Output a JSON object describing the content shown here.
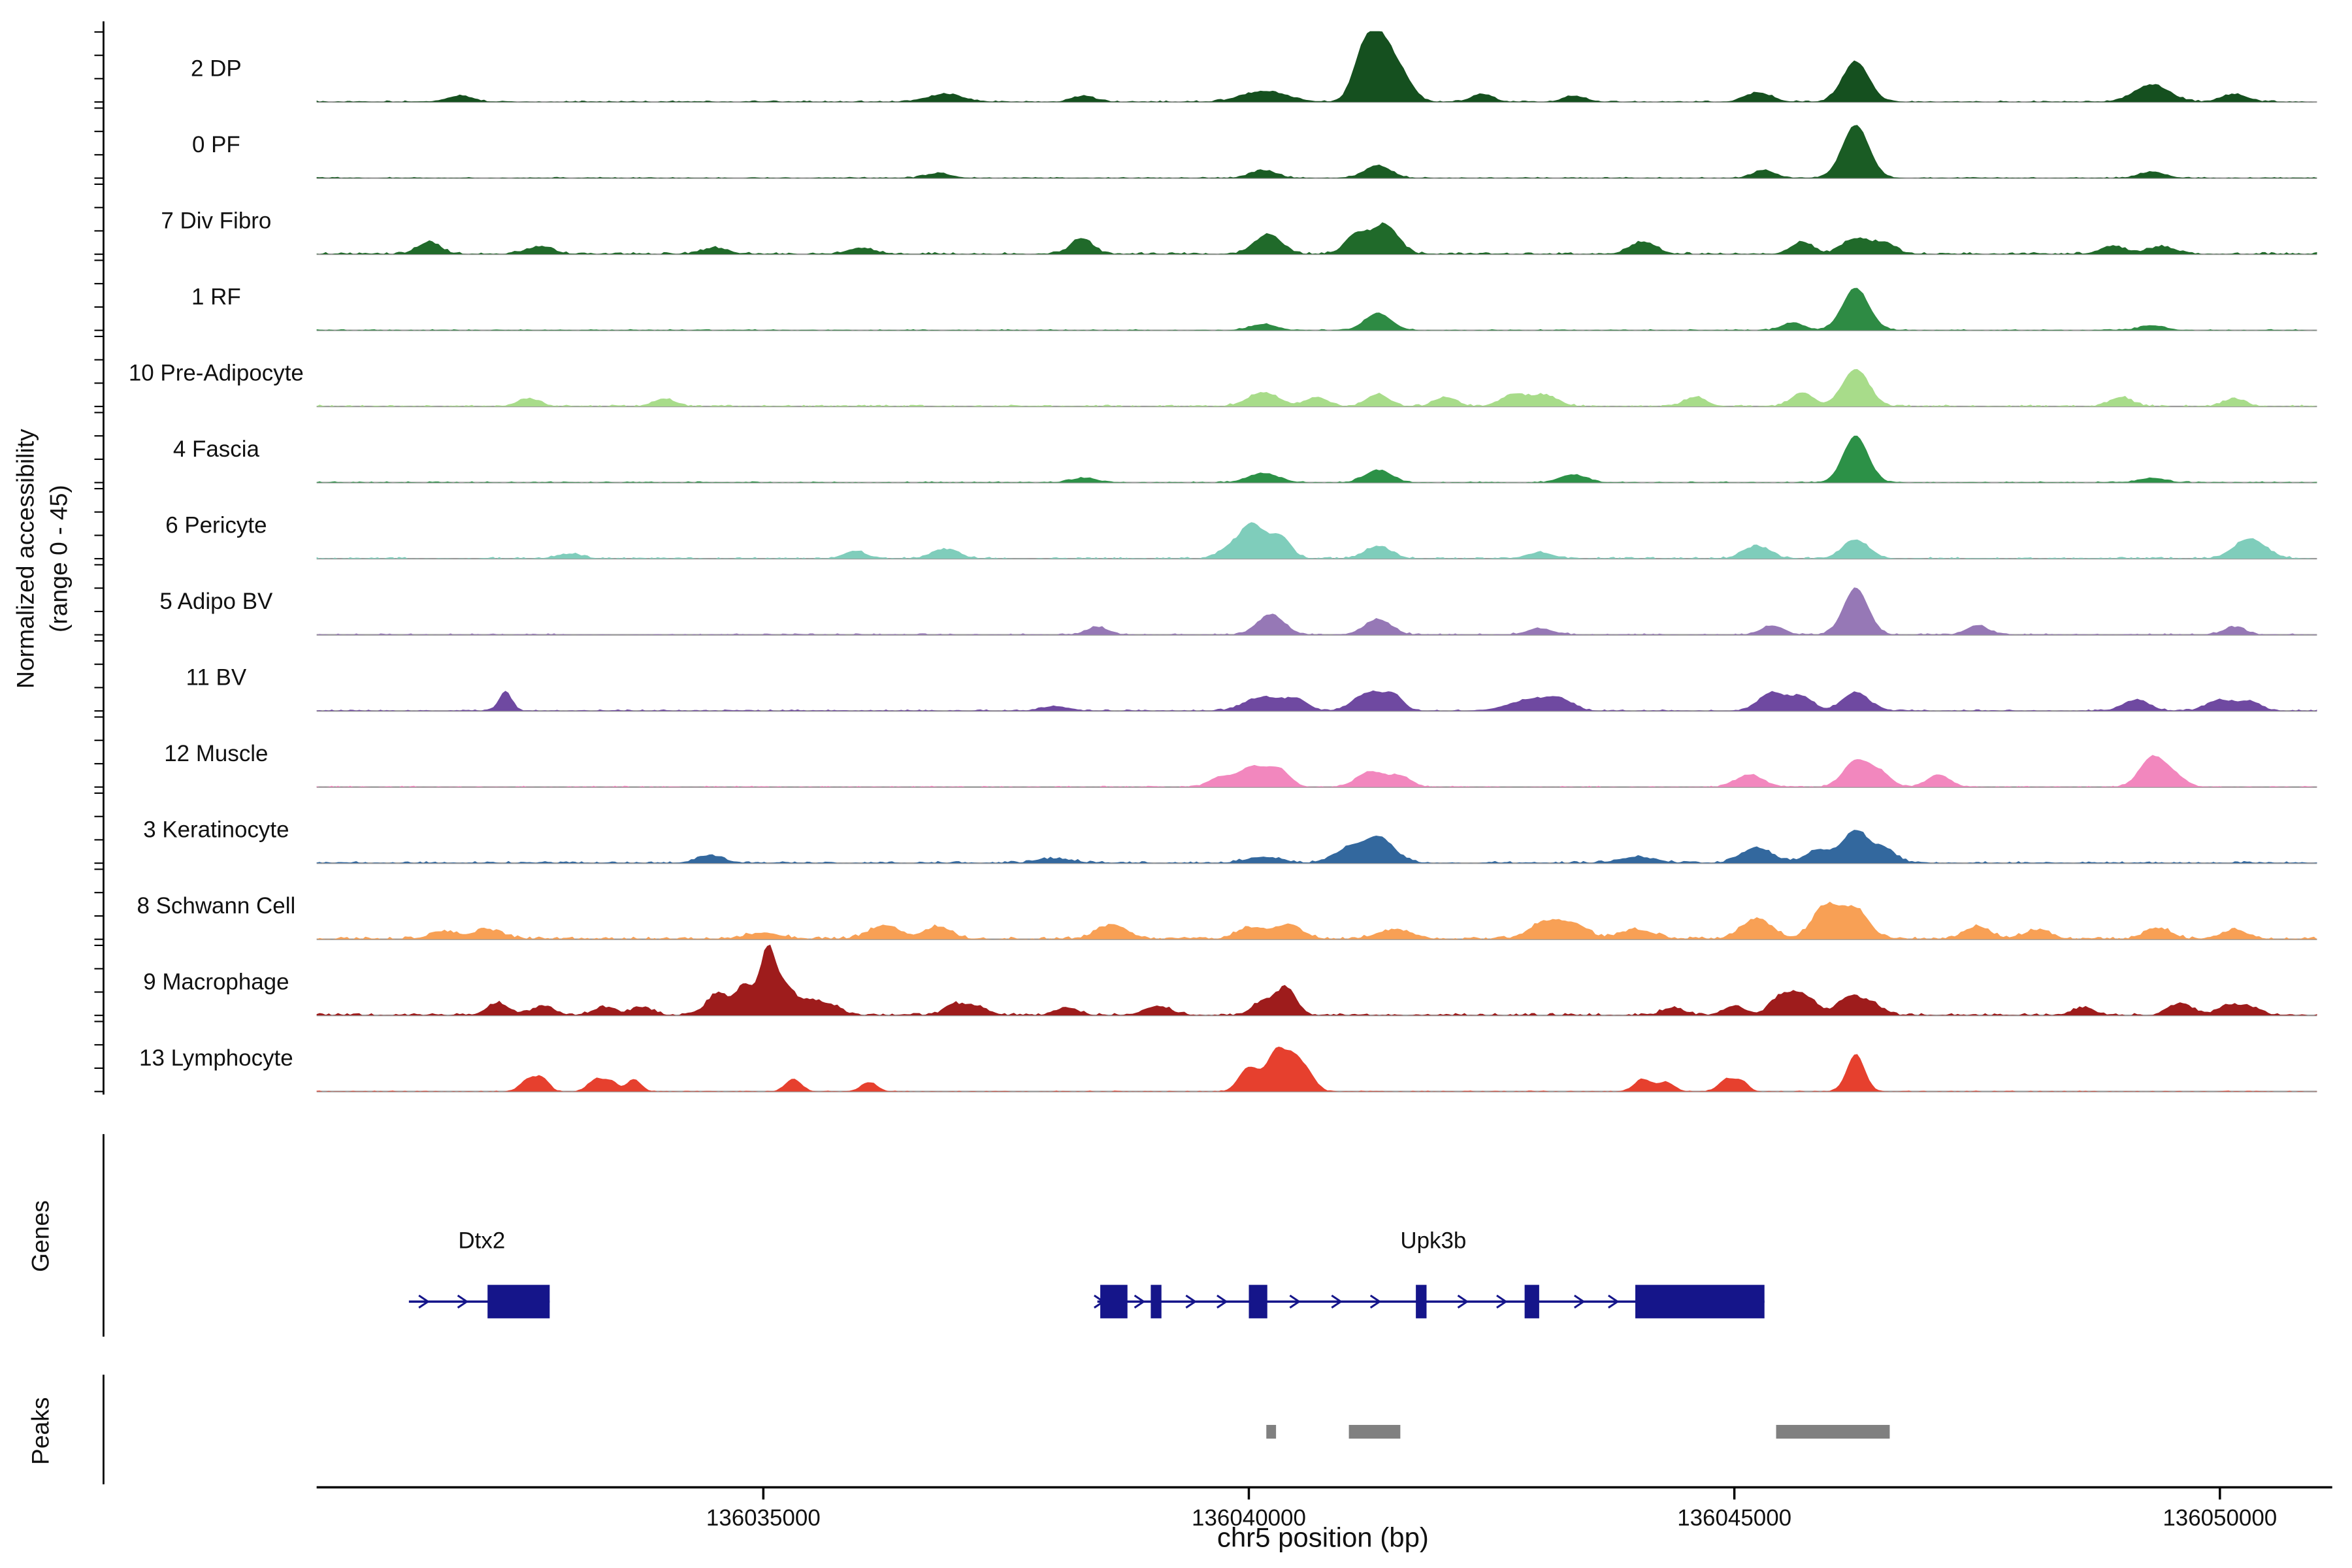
{
  "figure": {
    "ylabel_line1": "Normalized accessibility",
    "ylabel_line2": "(range 0 - 45)",
    "genes_label": "Genes",
    "peaks_label": "Peaks",
    "xlabel": "chr5 position (bp)"
  },
  "chart_data": {
    "type": "area",
    "title": "",
    "xlabel": "chr5 position (bp)",
    "ylabel": "Normalized accessibility (range 0 - 45)",
    "xlim": [
      136030400,
      136051000
    ],
    "track_value_range": [
      0,
      45
    ],
    "xticks": [
      136035000,
      136040000,
      136045000,
      136050000
    ],
    "gene_color": "#15158a",
    "peak_color": "#808080",
    "tracks": [
      {
        "id": "dp",
        "label": "2 DP",
        "color": "#15501f",
        "noise": 0.5,
        "bumps": [
          [
            136041330,
            44,
            350
          ],
          [
            136041150,
            12,
            200
          ],
          [
            136041600,
            10,
            250
          ],
          [
            136040160,
            7,
            500
          ],
          [
            136046250,
            26,
            300
          ],
          [
            136045250,
            6,
            300
          ],
          [
            136049300,
            11,
            400
          ],
          [
            136050150,
            5,
            300
          ],
          [
            136036875,
            5,
            400
          ],
          [
            136031875,
            4,
            300
          ],
          [
            136042400,
            5,
            250
          ],
          [
            136043350,
            4,
            250
          ],
          [
            136038300,
            4,
            250
          ]
        ]
      },
      {
        "id": "pf",
        "label": "0 PF",
        "color": "#1a5c24",
        "noise": 0.4,
        "bumps": [
          [
            136046250,
            34,
            300
          ],
          [
            136041330,
            8,
            300
          ],
          [
            136040150,
            5,
            300
          ],
          [
            136045300,
            5,
            250
          ],
          [
            136049300,
            4,
            300
          ],
          [
            136036800,
            3,
            300
          ]
        ]
      },
      {
        "id": "div-fibro",
        "label": "7 Div Fibro",
        "color": "#206a2a",
        "noise": 0.7,
        "bumps": [
          [
            136041400,
            19,
            300
          ],
          [
            136041100,
            12,
            250
          ],
          [
            136040200,
            13,
            300
          ],
          [
            136038280,
            10,
            250
          ],
          [
            136031560,
            8,
            250
          ],
          [
            136032700,
            5,
            300
          ],
          [
            136044060,
            8,
            300
          ],
          [
            136045700,
            8,
            250
          ],
          [
            136046250,
            10,
            300
          ],
          [
            136046550,
            7,
            250
          ],
          [
            136048900,
            5,
            300
          ],
          [
            136049400,
            5,
            300
          ],
          [
            136036000,
            4,
            300
          ],
          [
            136034500,
            4,
            300
          ]
        ]
      },
      {
        "id": "rf",
        "label": "1 RF",
        "color": "#2e8b44",
        "noise": 0.4,
        "bumps": [
          [
            136046250,
            27,
            300
          ],
          [
            136041330,
            11,
            300
          ],
          [
            136045600,
            5,
            250
          ],
          [
            136040150,
            4,
            300
          ],
          [
            136049300,
            3,
            300
          ]
        ]
      },
      {
        "id": "pre-adipocyte",
        "label": "10 Pre-Adipocyte",
        "color": "#a8dc8a",
        "noise": 0.6,
        "bumps": [
          [
            136046250,
            24,
            300
          ],
          [
            136045700,
            9,
            250
          ],
          [
            136040150,
            9,
            350
          ],
          [
            136040700,
            6,
            250
          ],
          [
            136041330,
            8,
            250
          ],
          [
            136042030,
            6,
            250
          ],
          [
            136042730,
            7,
            300
          ],
          [
            136043050,
            7,
            300
          ],
          [
            136044600,
            6,
            250
          ],
          [
            136032580,
            5,
            250
          ],
          [
            136033980,
            5,
            250
          ],
          [
            136048980,
            6,
            250
          ],
          [
            136050150,
            5,
            250
          ]
        ]
      },
      {
        "id": "fascia",
        "label": "4 Fascia",
        "color": "#2c9147",
        "noise": 0.4,
        "bumps": [
          [
            136046250,
            30,
            280
          ],
          [
            136041330,
            8,
            300
          ],
          [
            136040150,
            6,
            350
          ],
          [
            136043350,
            5,
            300
          ],
          [
            136038300,
            3,
            300
          ],
          [
            136049300,
            3,
            300
          ]
        ]
      },
      {
        "id": "pericyte",
        "label": "6 Pericyte",
        "color": "#7fcdbb",
        "noise": 0.6,
        "bumps": [
          [
            136040030,
            21,
            250
          ],
          [
            136040310,
            15,
            250
          ],
          [
            136039800,
            7,
            250
          ],
          [
            136041330,
            8,
            300
          ],
          [
            136045230,
            8,
            300
          ],
          [
            136046250,
            12,
            300
          ],
          [
            136050310,
            13,
            350
          ],
          [
            136036875,
            6,
            300
          ],
          [
            136035940,
            5,
            250
          ],
          [
            136043000,
            4,
            300
          ],
          [
            136033000,
            3,
            300
          ]
        ]
      },
      {
        "id": "adipo-bv",
        "label": "5 Adipo BV",
        "color": "#9678b6",
        "noise": 0.5,
        "bumps": [
          [
            136046250,
            30,
            280
          ],
          [
            136040230,
            13,
            300
          ],
          [
            136041330,
            10,
            300
          ],
          [
            136045390,
            6,
            250
          ],
          [
            136047500,
            6,
            250
          ],
          [
            136038440,
            5,
            250
          ],
          [
            136050150,
            5,
            250
          ],
          [
            136043000,
            4,
            300
          ]
        ]
      },
      {
        "id": "bv",
        "label": "11 BV",
        "color": "#6f49a1",
        "noise": 0.5,
        "bumps": [
          [
            136032344,
            12,
            150
          ],
          [
            136040150,
            9,
            400
          ],
          [
            136040500,
            7,
            250
          ],
          [
            136041250,
            12,
            350
          ],
          [
            136041500,
            8,
            200
          ],
          [
            136042900,
            7,
            500
          ],
          [
            136043200,
            6,
            300
          ],
          [
            136045390,
            12,
            300
          ],
          [
            136045700,
            9,
            250
          ],
          [
            136046250,
            12,
            300
          ],
          [
            136049140,
            7,
            300
          ],
          [
            136050000,
            7,
            300
          ],
          [
            136050310,
            6,
            250
          ],
          [
            136038000,
            3,
            300
          ]
        ]
      },
      {
        "id": "muscle",
        "label": "12 Muscle",
        "color": "#f287be",
        "noise": 0.4,
        "bumps": [
          [
            136040030,
            13,
            300
          ],
          [
            136040310,
            11,
            250
          ],
          [
            136041250,
            10,
            300
          ],
          [
            136041560,
            7,
            250
          ],
          [
            136045156,
            8,
            300
          ],
          [
            136046250,
            17,
            280
          ],
          [
            136046500,
            9,
            250
          ],
          [
            136047100,
            8,
            250
          ],
          [
            136049300,
            19,
            280
          ],
          [
            136049530,
            7,
            250
          ],
          [
            136039700,
            6,
            250
          ]
        ]
      },
      {
        "id": "keratinocyte",
        "label": "3 Keratinocyte",
        "color": "#33689e",
        "noise": 0.7,
        "bumps": [
          [
            136041330,
            17,
            350
          ],
          [
            136041000,
            8,
            300
          ],
          [
            136045230,
            10,
            350
          ],
          [
            136045860,
            8,
            300
          ],
          [
            136046250,
            21,
            300
          ],
          [
            136046560,
            8,
            250
          ],
          [
            136034450,
            5,
            300
          ],
          [
            136040150,
            4,
            400
          ],
          [
            136044000,
            4,
            400
          ],
          [
            136038000,
            3,
            400
          ]
        ]
      },
      {
        "id": "schwann",
        "label": "8 Schwann Cell",
        "color": "#f8a055",
        "noise": 0.9,
        "bumps": [
          [
            136045940,
            21,
            300
          ],
          [
            136046250,
            19,
            300
          ],
          [
            136045230,
            13,
            350
          ],
          [
            136044000,
            6,
            400
          ],
          [
            136043050,
            11,
            350
          ],
          [
            136043360,
            9,
            300
          ],
          [
            136040390,
            9,
            350
          ],
          [
            136040000,
            7,
            300
          ],
          [
            136038590,
            9,
            350
          ],
          [
            136036250,
            9,
            350
          ],
          [
            136036800,
            8,
            300
          ],
          [
            136032160,
            6,
            350
          ],
          [
            136031700,
            5,
            300
          ],
          [
            136047500,
            8,
            300
          ],
          [
            136048120,
            6,
            300
          ],
          [
            136049370,
            7,
            300
          ],
          [
            136050150,
            6,
            300
          ],
          [
            136041500,
            6,
            400
          ],
          [
            136035000,
            4,
            400
          ]
        ]
      },
      {
        "id": "macrophage",
        "label": "9 Macrophage",
        "color": "#9e1c1c",
        "noise": 0.8,
        "bumps": [
          [
            136035047,
            42,
            180
          ],
          [
            136034810,
            19,
            200
          ],
          [
            136034530,
            14,
            250
          ],
          [
            136035230,
            17,
            200
          ],
          [
            136035470,
            9,
            250
          ],
          [
            136035700,
            6,
            250
          ],
          [
            136040390,
            17,
            220
          ],
          [
            136040150,
            9,
            250
          ],
          [
            136039060,
            6,
            300
          ],
          [
            136038120,
            5,
            250
          ],
          [
            136037190,
            6,
            250
          ],
          [
            136036950,
            7,
            200
          ],
          [
            136045700,
            13,
            300
          ],
          [
            136045470,
            10,
            250
          ],
          [
            136046170,
            11,
            250
          ],
          [
            136046400,
            8,
            250
          ],
          [
            136044370,
            5,
            250
          ],
          [
            136045000,
            6,
            250
          ],
          [
            136032265,
            8,
            250
          ],
          [
            136032730,
            6,
            250
          ],
          [
            136033360,
            5,
            250
          ],
          [
            136033750,
            5,
            250
          ],
          [
            136048590,
            5,
            250
          ],
          [
            136049600,
            8,
            250
          ],
          [
            136050080,
            6,
            250
          ],
          [
            136050310,
            5,
            250
          ]
        ]
      },
      {
        "id": "lymphocyte",
        "label": "13 Lymphocyte",
        "color": "#e6402e",
        "noise": 0.3,
        "bumps": [
          [
            136039970,
            12,
            200
          ],
          [
            136040280,
            24,
            180
          ],
          [
            136040440,
            19,
            180
          ],
          [
            136040590,
            13,
            200
          ],
          [
            136040100,
            8,
            200
          ],
          [
            136046250,
            24,
            200
          ],
          [
            136032580,
            8,
            180
          ],
          [
            136032730,
            8,
            150
          ],
          [
            136033280,
            8,
            180
          ],
          [
            136033440,
            6,
            150
          ],
          [
            136033670,
            8,
            150
          ],
          [
            136035310,
            8,
            180
          ],
          [
            136036090,
            6,
            180
          ],
          [
            136044060,
            8,
            200
          ],
          [
            136044300,
            6,
            180
          ],
          [
            136044920,
            8,
            180
          ],
          [
            136045080,
            6,
            150
          ]
        ]
      }
    ],
    "genes": [
      {
        "name": "Dtx2",
        "label_bp": 136032100,
        "start": 136031350,
        "end": 136032800,
        "exons": [
          [
            136032160,
            136032800
          ]
        ],
        "chevrons": [
          136031500,
          136031900
        ]
      },
      {
        "name": "Upk3b",
        "label_bp": 136041900,
        "start": 136038440,
        "end": 136045310,
        "exons": [
          [
            136038470,
            136038750
          ],
          [
            136038990,
            136039100
          ],
          [
            136040000,
            136040190
          ],
          [
            136041720,
            136041830
          ],
          [
            136042840,
            136042990
          ],
          [
            136043980,
            136045310
          ]
        ],
        "chevrons": [
          136038455,
          136038870,
          136039400,
          136039720,
          136040470,
          136040900,
          136041300,
          136042200,
          136042600,
          136043400,
          136043750
        ]
      }
    ],
    "peaks": [
      [
        136040180,
        136040280
      ],
      [
        136041030,
        136041560
      ],
      [
        136045430,
        136046600
      ]
    ]
  }
}
